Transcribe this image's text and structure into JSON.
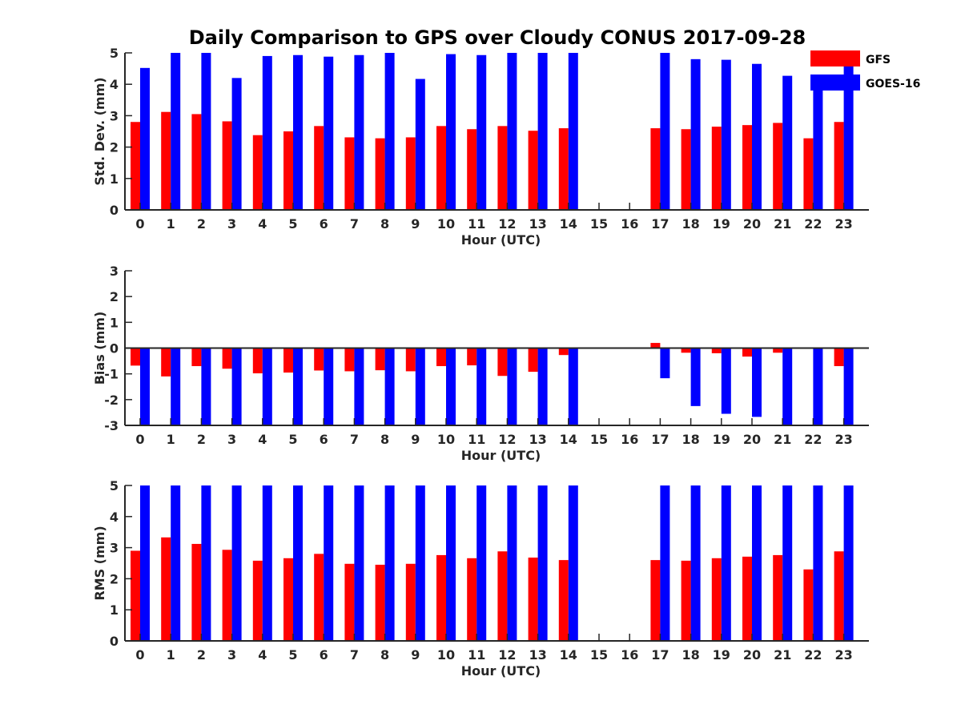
{
  "title": "Daily Comparison to GPS over Cloudy CONUS 2017-09-28",
  "legend": {
    "placement": "top-right",
    "entries": [
      {
        "label": "GFS",
        "color": "#ff0000"
      },
      {
        "label": "GOES-16",
        "color": "#0000ff"
      }
    ]
  },
  "chart_data": [
    {
      "type": "bar",
      "ylabel": "Std. Dev. (mm)",
      "xlabel": "Hour (UTC)",
      "ylim": [
        0,
        5
      ],
      "yticks": [
        "0",
        "1",
        "2",
        "3",
        "4",
        "5"
      ],
      "categories": [
        "0",
        "1",
        "2",
        "3",
        "4",
        "5",
        "6",
        "7",
        "8",
        "9",
        "10",
        "11",
        "12",
        "13",
        "14",
        "15",
        "16",
        "17",
        "18",
        "19",
        "20",
        "21",
        "22",
        "23"
      ],
      "series": [
        {
          "name": "GFS",
          "color": "#ff0000",
          "values": [
            2.8,
            3.12,
            3.05,
            2.82,
            2.38,
            2.5,
            2.67,
            2.31,
            2.28,
            2.31,
            2.67,
            2.57,
            2.67,
            2.52,
            2.6,
            null,
            null,
            2.6,
            2.57,
            2.65,
            2.7,
            2.77,
            2.28,
            2.8
          ]
        },
        {
          "name": "GOES-16",
          "color": "#0000ff",
          "values": [
            4.52,
            5,
            5,
            4.2,
            4.9,
            4.93,
            4.88,
            4.93,
            5,
            4.17,
            4.96,
            4.93,
            5,
            5,
            5,
            null,
            null,
            5,
            4.8,
            4.78,
            4.65,
            4.27,
            4.18,
            4.62
          ]
        }
      ]
    },
    {
      "type": "bar",
      "ylabel": "Bias (mm)",
      "xlabel": "Hour (UTC)",
      "ylim": [
        -3,
        3
      ],
      "yticks": [
        "-3",
        "-2",
        "-1",
        "0",
        "1",
        "2",
        "3"
      ],
      "zero_line": true,
      "categories": [
        "0",
        "1",
        "2",
        "3",
        "4",
        "5",
        "6",
        "7",
        "8",
        "9",
        "10",
        "11",
        "12",
        "13",
        "14",
        "15",
        "16",
        "17",
        "18",
        "19",
        "20",
        "21",
        "22",
        "23"
      ],
      "series": [
        {
          "name": "GFS",
          "color": "#ff0000",
          "values": [
            -0.68,
            -1.1,
            -0.7,
            -0.8,
            -0.98,
            -0.95,
            -0.87,
            -0.9,
            -0.86,
            -0.9,
            -0.7,
            -0.67,
            -1.08,
            -0.92,
            -0.27,
            null,
            null,
            0.2,
            -0.18,
            -0.2,
            -0.33,
            -0.18,
            -0.02,
            -0.7
          ]
        },
        {
          "name": "GOES-16",
          "color": "#0000ff",
          "values": [
            -3,
            -3,
            -3,
            -3,
            -3,
            -3,
            -3,
            -3,
            -3,
            -3,
            -3,
            -3,
            -3,
            -3,
            -3,
            null,
            null,
            -1.17,
            -2.25,
            -2.55,
            -2.67,
            -3,
            -3,
            -3
          ]
        }
      ]
    },
    {
      "type": "bar",
      "ylabel": "RMS (mm)",
      "xlabel": "Hour (UTC)",
      "ylim": [
        0,
        5
      ],
      "yticks": [
        "0",
        "1",
        "2",
        "3",
        "4",
        "5"
      ],
      "categories": [
        "0",
        "1",
        "2",
        "3",
        "4",
        "5",
        "6",
        "7",
        "8",
        "9",
        "10",
        "11",
        "12",
        "13",
        "14",
        "15",
        "16",
        "17",
        "18",
        "19",
        "20",
        "21",
        "22",
        "23"
      ],
      "series": [
        {
          "name": "GFS",
          "color": "#ff0000",
          "values": [
            2.9,
            3.33,
            3.12,
            2.93,
            2.58,
            2.66,
            2.8,
            2.48,
            2.45,
            2.48,
            2.76,
            2.66,
            2.88,
            2.68,
            2.6,
            null,
            null,
            2.6,
            2.58,
            2.66,
            2.71,
            2.76,
            2.3,
            2.88
          ]
        },
        {
          "name": "GOES-16",
          "color": "#0000ff",
          "values": [
            5,
            5,
            5,
            5,
            5,
            5,
            5,
            5,
            5,
            5,
            5,
            5,
            5,
            5,
            5,
            null,
            null,
            5,
            5,
            5,
            5,
            5,
            5,
            5
          ]
        }
      ]
    }
  ]
}
